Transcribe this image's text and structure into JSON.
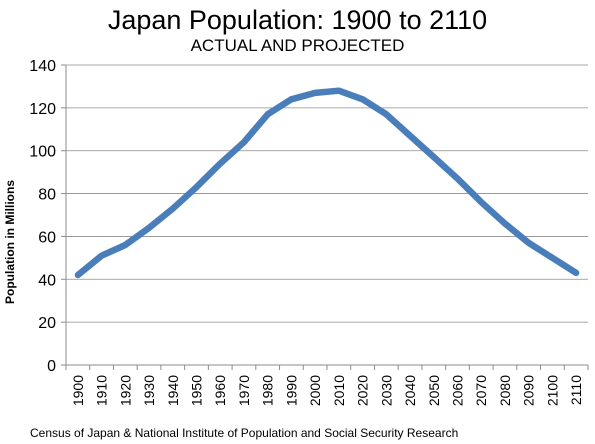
{
  "chart_data": {
    "type": "line",
    "title": "Japan Population: 1900 to 2110",
    "subtitle": "ACTUAL AND PROJECTED",
    "ylabel": "Population in Millions",
    "xlabel": "",
    "source": "Census of Japan & National Institute of Population and Social Security Research",
    "ylim": [
      0,
      140
    ],
    "yticks": [
      0,
      20,
      40,
      60,
      80,
      100,
      120,
      140
    ],
    "grid": true,
    "legend": "none",
    "line_color": "#4a7ebb",
    "x": [
      "1900",
      "1910",
      "1920",
      "1930",
      "1940",
      "1950",
      "1960",
      "1970",
      "1980",
      "1990",
      "2000",
      "2010",
      "2020",
      "2030",
      "2040",
      "2050",
      "2060",
      "2070",
      "2080",
      "2090",
      "2100",
      "2110"
    ],
    "series": [
      {
        "values": [
          42,
          51,
          56,
          64,
          73,
          83,
          94,
          104,
          117,
          124,
          127,
          128,
          124,
          117,
          107,
          97,
          87,
          76,
          66,
          57,
          50,
          43
        ]
      }
    ]
  }
}
